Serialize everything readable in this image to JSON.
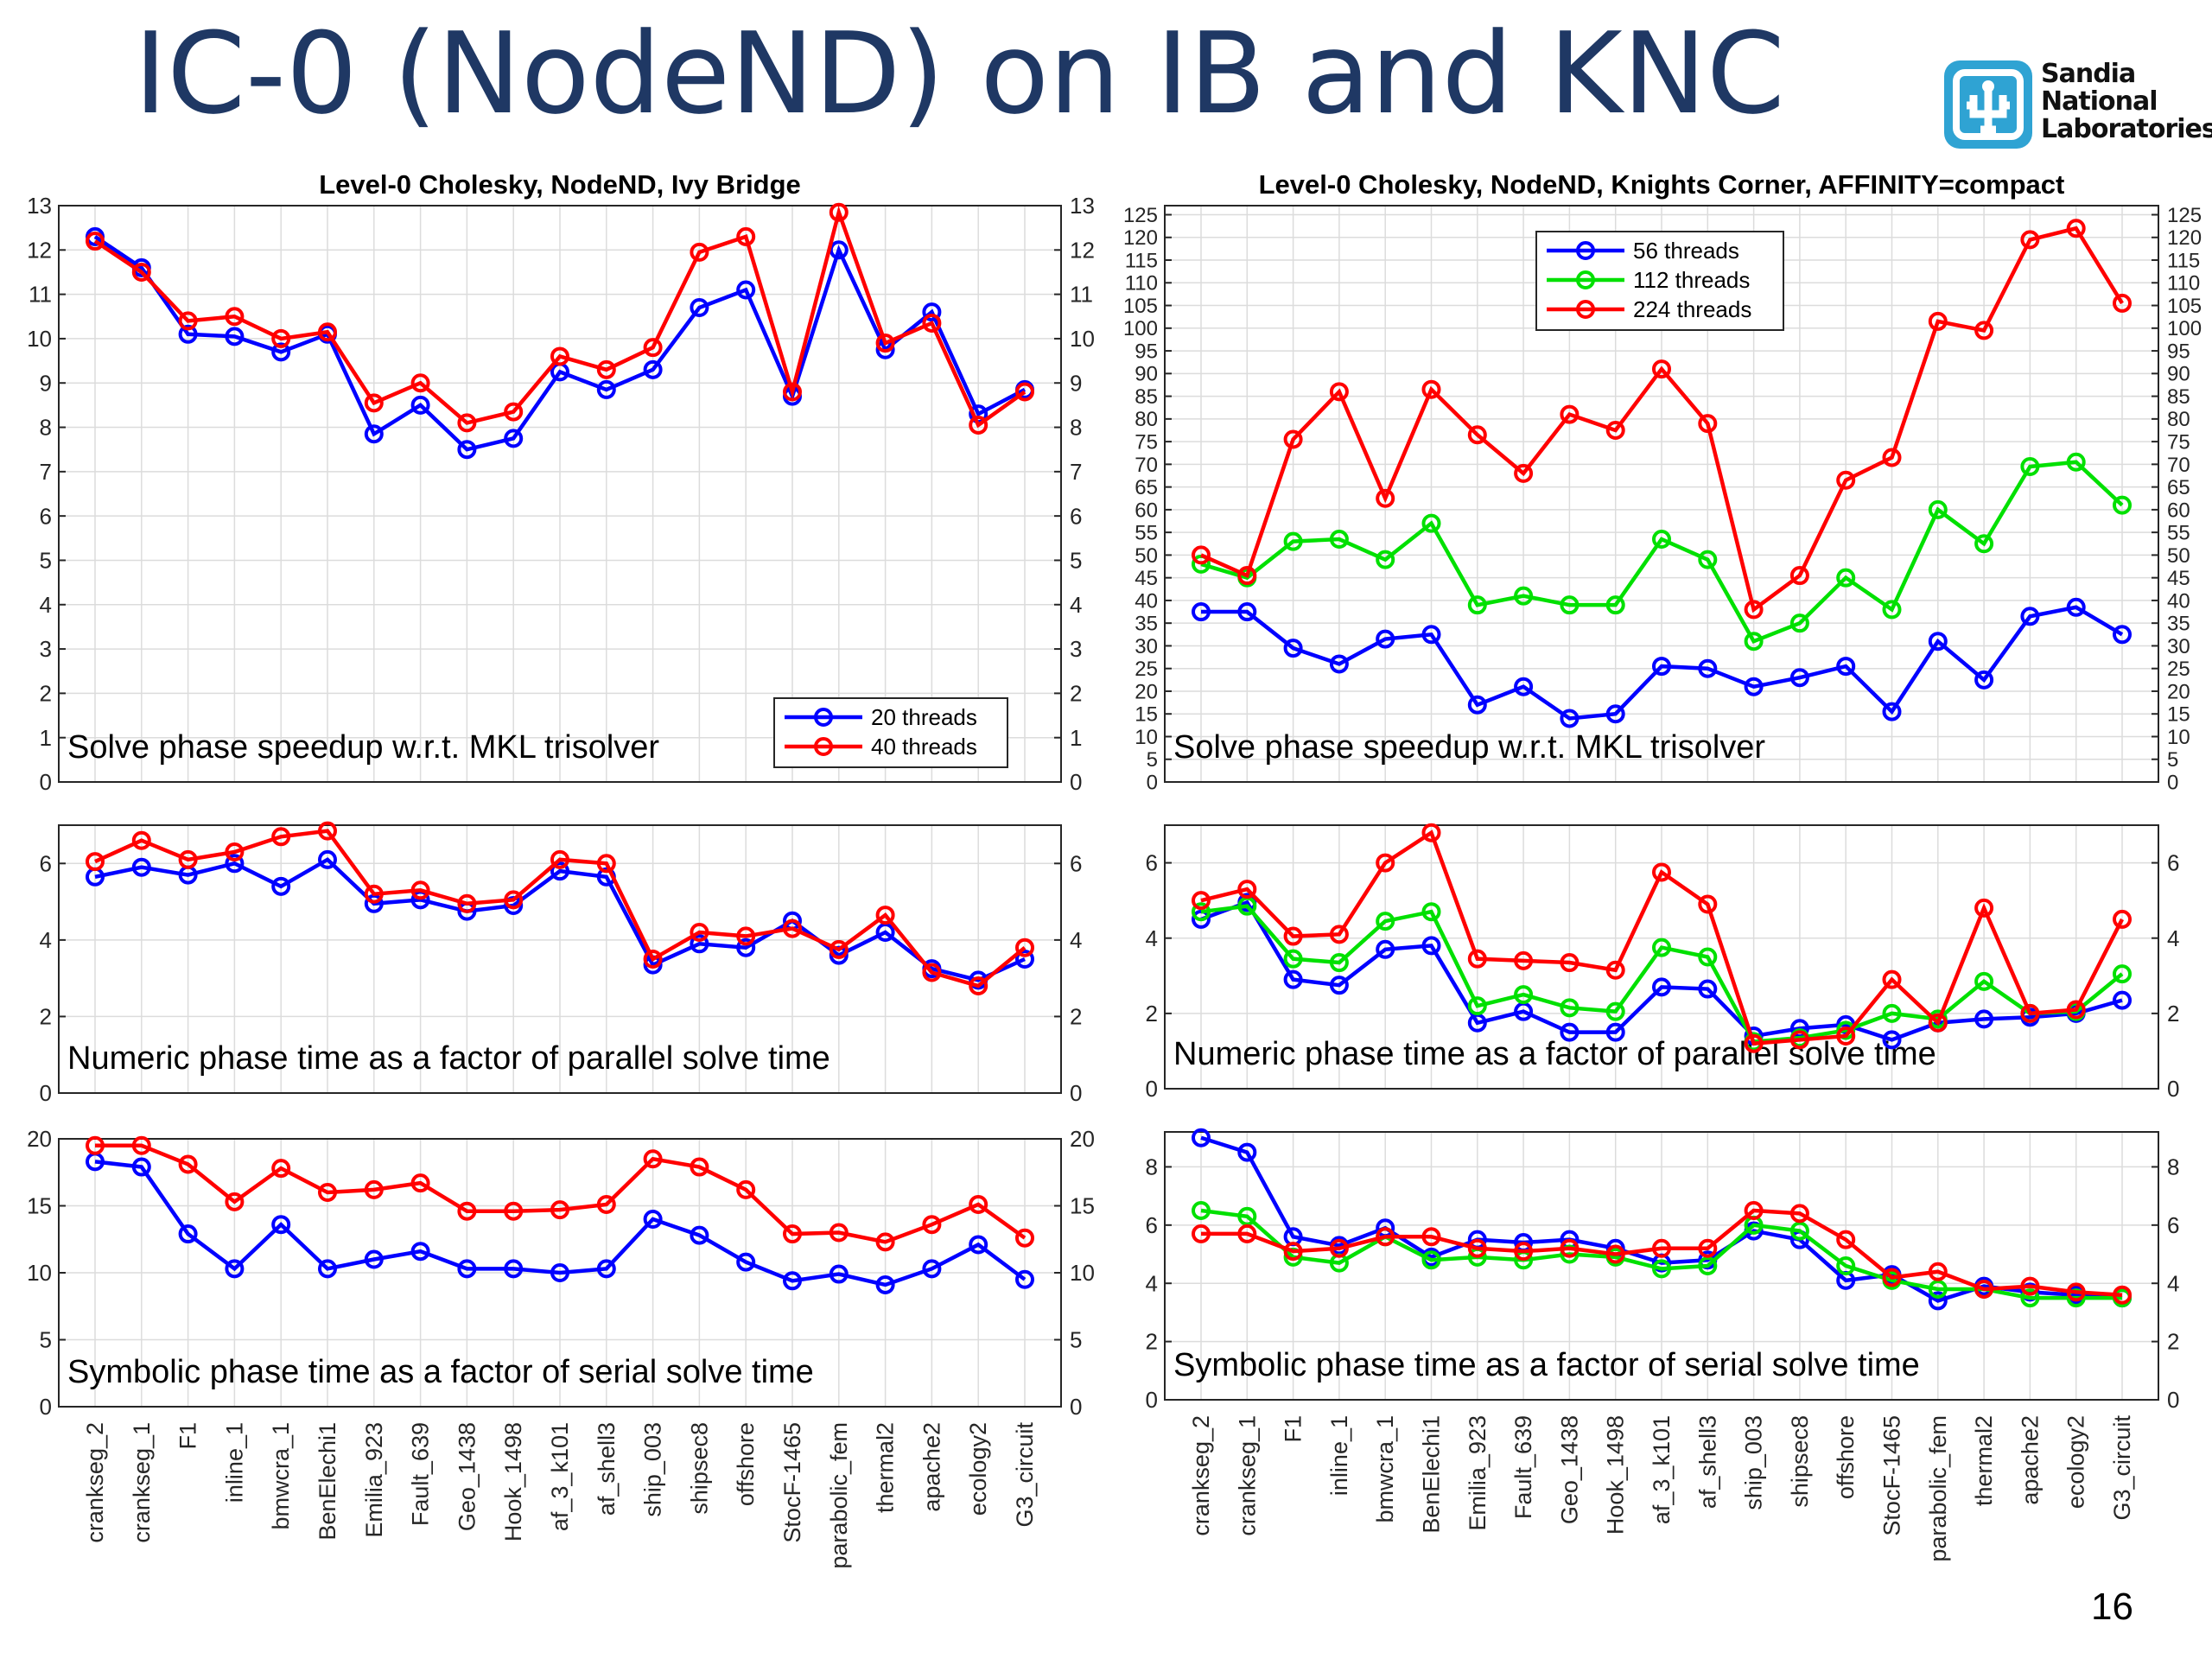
{
  "slide": {
    "title": "IC-0 (NodeND) on IB and KNC",
    "page_number": "16",
    "logo_lines": [
      "Sandia",
      "National",
      "Laboratories"
    ]
  },
  "chart_data": [
    {
      "type": "line",
      "id": "ib-solve",
      "title": "Level-0 Cholesky, NodeND, Ivy Bridge",
      "annotation": "Solve phase speedup w.r.t. MKL trisolver",
      "ylim": [
        0,
        13
      ],
      "yticks": [
        0,
        1,
        2,
        3,
        4,
        5,
        6,
        7,
        8,
        9,
        10,
        11,
        12,
        13
      ],
      "grid": true,
      "legend": "bottom-right",
      "categories": [
        "crankseg_2",
        "crankseg_1",
        "F1",
        "inline_1",
        "bmwcra_1",
        "BenElechi1",
        "Emilia_923",
        "Fault_639",
        "Geo_1438",
        "Hook_1498",
        "af_3_k101",
        "af_shell3",
        "ship_003",
        "shipsec8",
        "offshore",
        "StocF-1465",
        "parabolic_fem",
        "thermal2",
        "apache2",
        "ecology2",
        "G3_circuit"
      ],
      "series": [
        {
          "name": "20 threads",
          "color": "#0000ff",
          "values": [
            12.3,
            11.6,
            10.1,
            10.05,
            9.7,
            10.1,
            7.85,
            8.5,
            7.5,
            7.75,
            9.25,
            8.85,
            9.3,
            10.7,
            11.1,
            8.7,
            12.0,
            9.75,
            10.6,
            8.3,
            8.85
          ]
        },
        {
          "name": "40 threads",
          "color": "#ff0000",
          "values": [
            12.2,
            11.5,
            10.4,
            10.5,
            10.0,
            10.15,
            8.55,
            9.0,
            8.1,
            8.35,
            9.6,
            9.3,
            9.8,
            11.95,
            12.3,
            8.8,
            12.85,
            9.9,
            10.35,
            8.05,
            8.8
          ]
        }
      ]
    },
    {
      "type": "line",
      "id": "ib-numeric",
      "annotation": "Numeric phase time as a factor of parallel solve time",
      "ylim": [
        0,
        7
      ],
      "yticks": [
        0,
        2,
        4,
        6
      ],
      "grid": true,
      "series": [
        {
          "name": "20 threads",
          "color": "#0000ff",
          "values": [
            5.65,
            5.9,
            5.7,
            6.0,
            5.4,
            6.1,
            4.95,
            5.05,
            4.75,
            4.9,
            5.8,
            5.65,
            3.35,
            3.9,
            3.8,
            4.5,
            3.6,
            4.2,
            3.25,
            2.95,
            3.5
          ]
        },
        {
          "name": "40 threads",
          "color": "#ff0000",
          "values": [
            6.05,
            6.6,
            6.1,
            6.3,
            6.7,
            6.85,
            5.2,
            5.3,
            4.95,
            5.05,
            6.1,
            6.0,
            3.5,
            4.2,
            4.1,
            4.3,
            3.75,
            4.65,
            3.15,
            2.8,
            3.8
          ]
        }
      ]
    },
    {
      "type": "line",
      "id": "ib-symbolic",
      "annotation": "Symbolic phase time as a factor of serial solve time",
      "ylim": [
        0,
        20
      ],
      "yticks": [
        0,
        5,
        10,
        15,
        20
      ],
      "grid": true,
      "series": [
        {
          "name": "20 threads",
          "color": "#0000ff",
          "values": [
            18.3,
            17.9,
            12.9,
            10.3,
            13.6,
            10.3,
            11.0,
            11.6,
            10.3,
            10.3,
            10.0,
            10.3,
            14.0,
            12.8,
            10.8,
            9.4,
            9.9,
            9.1,
            10.3,
            12.1,
            9.5
          ]
        },
        {
          "name": "40 threads",
          "color": "#ff0000",
          "values": [
            19.5,
            19.5,
            18.1,
            15.3,
            17.8,
            16.0,
            16.2,
            16.7,
            14.6,
            14.6,
            14.7,
            15.1,
            18.5,
            17.9,
            16.2,
            12.9,
            13.0,
            12.3,
            13.6,
            15.1,
            12.6
          ]
        }
      ]
    },
    {
      "type": "line",
      "id": "knc-solve",
      "title": "Level-0 Cholesky, NodeND, Knights Corner, AFFINITY=compact",
      "annotation": "Solve phase speedup w.r.t. MKL trisolver",
      "ylim": [
        0,
        127
      ],
      "yticks": [
        0,
        5,
        10,
        15,
        20,
        25,
        30,
        35,
        40,
        45,
        50,
        55,
        60,
        65,
        70,
        75,
        80,
        85,
        90,
        95,
        100,
        105,
        110,
        115,
        120,
        125
      ],
      "grid": true,
      "legend": "top-center",
      "categories": [
        "crankseg_2",
        "crankseg_1",
        "F1",
        "inline_1",
        "bmwcra_1",
        "BenElechi1",
        "Emilia_923",
        "Fault_639",
        "Geo_1438",
        "Hook_1498",
        "af_3_k101",
        "af_shell3",
        "ship_003",
        "shipsec8",
        "offshore",
        "StocF-1465",
        "parabolic_fem",
        "thermal2",
        "apache2",
        "ecology2",
        "G3_circuit"
      ],
      "series": [
        {
          "name": "56 threads",
          "color": "#0000ff",
          "values": [
            37.5,
            37.5,
            29.5,
            26.0,
            31.5,
            32.5,
            17.0,
            21.0,
            14.0,
            15.0,
            25.5,
            25.0,
            21.0,
            23.0,
            25.5,
            15.5,
            31.0,
            22.5,
            36.5,
            38.5,
            32.5
          ]
        },
        {
          "name": "112 threads",
          "color": "#00e000",
          "values": [
            48.0,
            45.0,
            53.0,
            53.5,
            49.0,
            57.0,
            39.0,
            41.0,
            39.0,
            39.0,
            53.5,
            49.0,
            31.0,
            35.0,
            45.0,
            38.0,
            60.0,
            52.5,
            69.5,
            70.5,
            61.0
          ]
        },
        {
          "name": "224 threads",
          "color": "#ff0000",
          "values": [
            50.0,
            45.5,
            75.5,
            86.0,
            62.5,
            86.5,
            76.5,
            68.0,
            81.0,
            77.5,
            91.0,
            79.0,
            38.0,
            45.5,
            66.5,
            71.5,
            101.5,
            99.5,
            119.5,
            122.0,
            105.5
          ]
        }
      ]
    },
    {
      "type": "line",
      "id": "knc-numeric",
      "annotation": "Numeric phase time as a factor of parallel solve time",
      "ylim": [
        0,
        7
      ],
      "yticks": [
        0,
        2,
        4,
        6
      ],
      "grid": true,
      "series": [
        {
          "name": "56 threads",
          "color": "#0000ff",
          "values": [
            4.5,
            4.95,
            2.9,
            2.75,
            3.7,
            3.8,
            1.75,
            2.05,
            1.5,
            1.5,
            2.7,
            2.65,
            1.4,
            1.6,
            1.7,
            1.3,
            1.75,
            1.85,
            1.9,
            2.0,
            2.35
          ]
        },
        {
          "name": "112 threads",
          "color": "#00e000",
          "values": [
            4.7,
            4.85,
            3.45,
            3.35,
            4.45,
            4.7,
            2.2,
            2.5,
            2.15,
            2.05,
            3.75,
            3.5,
            1.25,
            1.35,
            1.55,
            2.0,
            1.85,
            2.85,
            2.0,
            2.05,
            3.05
          ]
        },
        {
          "name": "224 threads",
          "color": "#ff0000",
          "values": [
            5.0,
            5.3,
            4.05,
            4.1,
            6.0,
            6.8,
            3.45,
            3.4,
            3.35,
            3.15,
            5.75,
            4.9,
            1.2,
            1.3,
            1.4,
            2.9,
            1.75,
            4.8,
            2.0,
            2.1,
            4.5
          ]
        }
      ]
    },
    {
      "type": "line",
      "id": "knc-symbolic",
      "annotation": "Symbolic phase time as a factor of serial solve time",
      "ylim": [
        0,
        9.2
      ],
      "yticks": [
        0,
        2,
        4,
        6,
        8
      ],
      "grid": true,
      "series": [
        {
          "name": "56 threads",
          "color": "#0000ff",
          "values": [
            9.0,
            8.5,
            5.6,
            5.3,
            5.9,
            4.9,
            5.5,
            5.4,
            5.5,
            5.2,
            4.7,
            4.8,
            5.8,
            5.5,
            4.1,
            4.3,
            3.4,
            3.9,
            3.7,
            3.6,
            3.5
          ]
        },
        {
          "name": "112 threads",
          "color": "#00e000",
          "values": [
            6.5,
            6.3,
            4.9,
            4.7,
            5.6,
            4.8,
            4.9,
            4.8,
            5.0,
            4.9,
            4.5,
            4.6,
            6.0,
            5.8,
            4.6,
            4.1,
            3.8,
            3.8,
            3.5,
            3.5,
            3.5
          ]
        },
        {
          "name": "224 threads",
          "color": "#ff0000",
          "values": [
            5.7,
            5.7,
            5.1,
            5.2,
            5.6,
            5.6,
            5.2,
            5.1,
            5.2,
            5.0,
            5.2,
            5.2,
            6.5,
            6.4,
            5.5,
            4.2,
            4.4,
            3.8,
            3.9,
            3.7,
            3.6
          ]
        }
      ]
    }
  ]
}
